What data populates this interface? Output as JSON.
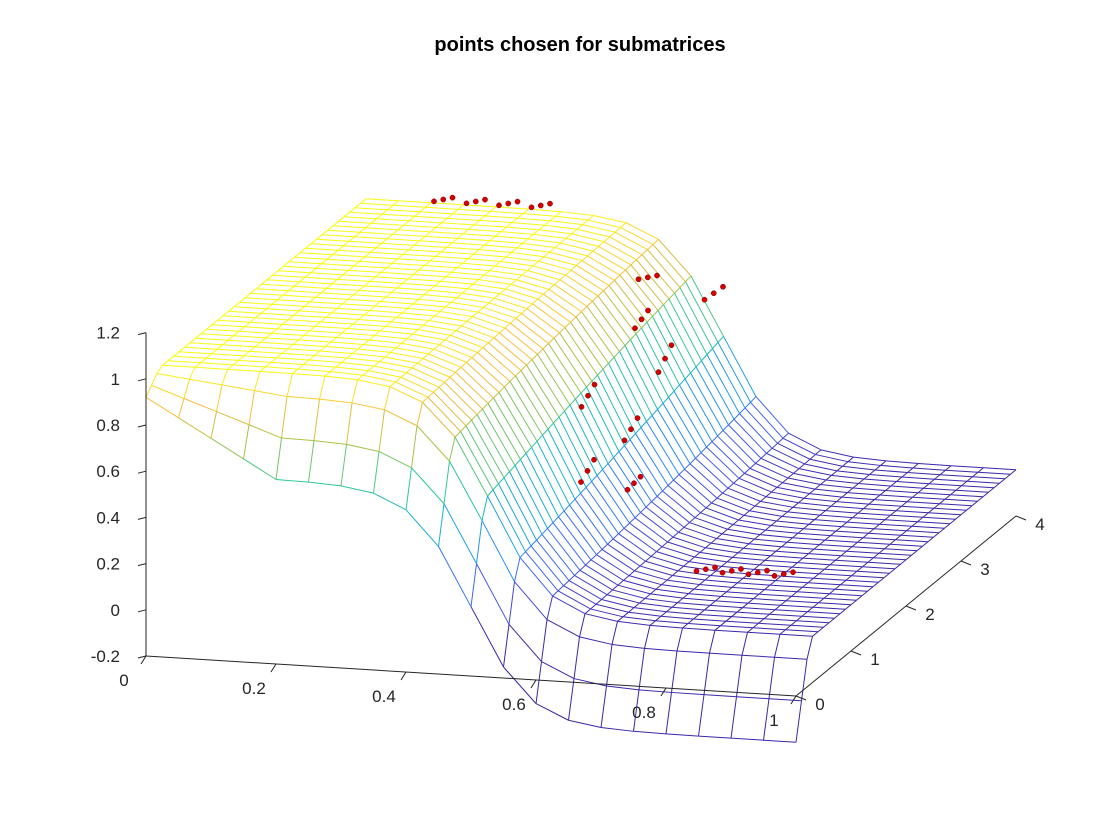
{
  "chart_data": {
    "type": "mesh3d",
    "title": "points chosen for submatrices",
    "xlabel": "",
    "ylabel": "",
    "zlabel": "",
    "xlim": [
      0,
      1
    ],
    "ylim": [
      0,
      4
    ],
    "zlim": [
      -0.2,
      1.2
    ],
    "x_ticks": [
      "0",
      "0.2",
      "0.4",
      "0.6",
      "0.8",
      "1"
    ],
    "y_ticks": [
      "0",
      "1",
      "2",
      "3",
      "4"
    ],
    "z_ticks": [
      "-0.2",
      "0",
      "0.2",
      "0.4",
      "0.6",
      "0.8",
      "1",
      "1.2"
    ],
    "surface": {
      "description_values": "step profile: value ~1.0 for x < 0.45, falling through a smooth front to ~0 for x > 0.7; front moves toward larger x as y increases; near y = 0 the plateau dips to ~0.6",
      "x_samples": [
        0,
        0.05,
        0.1,
        0.15,
        0.2,
        0.25,
        0.3,
        0.35,
        0.4,
        0.45,
        0.5,
        0.55,
        0.6,
        0.65,
        0.7,
        0.75,
        0.8,
        0.85,
        0.9,
        0.95,
        1.0
      ],
      "y_range": [
        0,
        4
      ],
      "peak_value": 1.0,
      "floor_value": 0.0,
      "colormap": "parula"
    },
    "points": {
      "color": "#d40000",
      "series": [
        {
          "x": [
            0.13,
            0.14,
            0.15
          ],
          "y": [
            3.7,
            3.75,
            3.8
          ],
          "z": [
            1.07,
            1.07,
            1.07
          ]
        },
        {
          "x": [
            0.18,
            0.19,
            0.2
          ],
          "y": [
            3.7,
            3.75,
            3.8
          ],
          "z": [
            1.07,
            1.07,
            1.07
          ]
        },
        {
          "x": [
            0.23,
            0.24,
            0.25
          ],
          "y": [
            3.7,
            3.75,
            3.8
          ],
          "z": [
            1.07,
            1.07,
            1.07
          ]
        },
        {
          "x": [
            0.28,
            0.29,
            0.3
          ],
          "y": [
            3.7,
            3.75,
            3.8
          ],
          "z": [
            1.07,
            1.07,
            1.07
          ]
        },
        {
          "x": [
            0.47,
            0.48,
            0.49
          ],
          "y": [
            3.4,
            3.45,
            3.5
          ],
          "z": [
            0.85,
            0.85,
            0.85
          ]
        },
        {
          "x": [
            0.58,
            0.59,
            0.6
          ],
          "y": [
            3.3,
            3.35,
            3.4
          ],
          "z": [
            0.8,
            0.82,
            0.84
          ]
        },
        {
          "x": [
            0.49,
            0.5,
            0.51
          ],
          "y": [
            3.1,
            3.1,
            3.1
          ],
          "z": [
            0.7,
            0.74,
            0.78
          ]
        },
        {
          "x": [
            0.56,
            0.57,
            0.58
          ],
          "y": [
            2.7,
            2.7,
            2.7
          ],
          "z": [
            0.6,
            0.66,
            0.72
          ]
        },
        {
          "x": [
            0.45,
            0.46,
            0.47
          ],
          "y": [
            2.6,
            2.6,
            2.6
          ],
          "z": [
            0.45,
            0.5,
            0.55
          ]
        },
        {
          "x": [
            0.55,
            0.56,
            0.57
          ],
          "y": [
            2.2,
            2.2,
            2.2
          ],
          "z": [
            0.4,
            0.45,
            0.5
          ]
        },
        {
          "x": [
            0.5,
            0.51,
            0.52
          ],
          "y": [
            2.0,
            2.0,
            2.0
          ],
          "z": [
            0.25,
            0.3,
            0.35
          ]
        },
        {
          "x": [
            0.58,
            0.59,
            0.6
          ],
          "y": [
            1.9,
            1.9,
            1.9
          ],
          "z": [
            0.25,
            0.28,
            0.31
          ]
        },
        {
          "x": [
            0.72,
            0.73,
            0.74
          ],
          "y": [
            1.5,
            1.55,
            1.6
          ],
          "z": [
            0.0,
            0.0,
            0.0
          ]
        },
        {
          "x": [
            0.76,
            0.77,
            0.78
          ],
          "y": [
            1.5,
            1.55,
            1.6
          ],
          "z": [
            0.0,
            0.0,
            0.0
          ]
        },
        {
          "x": [
            0.8,
            0.81,
            0.82
          ],
          "y": [
            1.5,
            1.55,
            1.6
          ],
          "z": [
            0.0,
            0.0,
            0.0
          ]
        },
        {
          "x": [
            0.84,
            0.85,
            0.86
          ],
          "y": [
            1.5,
            1.55,
            1.6
          ],
          "z": [
            0.0,
            0.0,
            0.0
          ]
        }
      ]
    },
    "grid": false,
    "view": "3d-perspective"
  }
}
